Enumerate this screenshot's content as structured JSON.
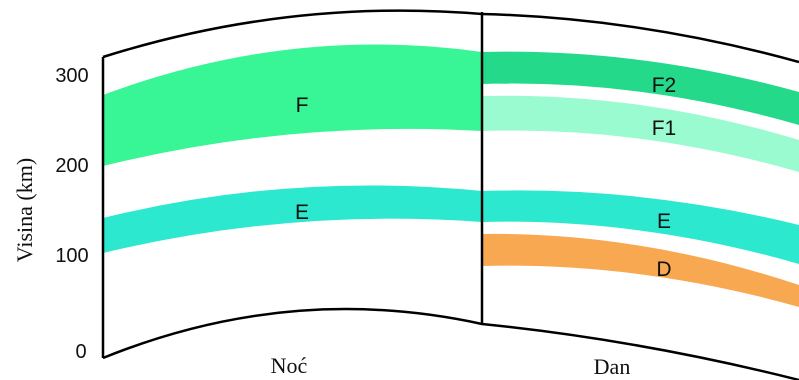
{
  "y_axis": {
    "title": "Visina (km)",
    "ticks": [
      "0",
      "100",
      "200",
      "300"
    ]
  },
  "sides": {
    "night": "Noć",
    "day": "Dan"
  },
  "layers": {
    "night_F": {
      "label": "F",
      "color": "#38f595"
    },
    "night_E": {
      "label": "E",
      "color": "#2ce8cf"
    },
    "day_F2": {
      "label": "F2",
      "color": "#25d98a"
    },
    "day_F1": {
      "label": "F1",
      "color": "#9afad0"
    },
    "day_E": {
      "label": "E",
      "color": "#2ce8cf"
    },
    "day_D": {
      "label": "D",
      "color": "#f9a852"
    }
  }
}
